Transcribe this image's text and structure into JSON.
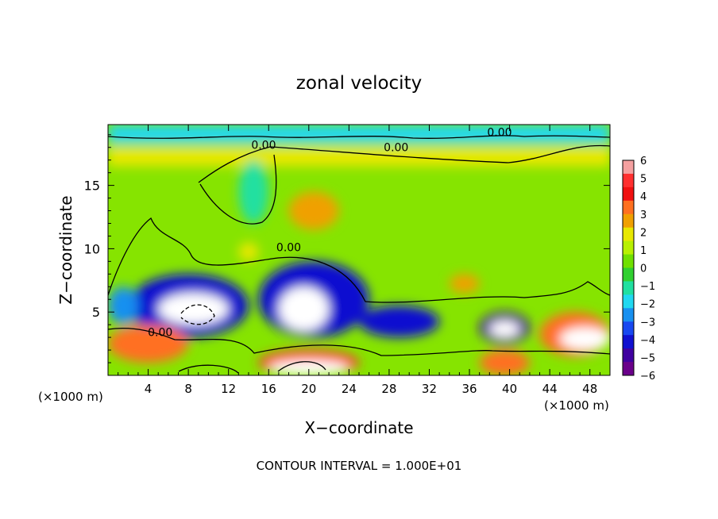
{
  "chart_data": {
    "type": "heatmap",
    "title": "zonal velocity",
    "xlabel": "X−coordinate",
    "ylabel": "Z−coordinate",
    "x_unit_left": "(×1000 m)",
    "x_unit_right": "(×1000 m)",
    "footer": "CONTOUR INTERVAL = 1.000E+01",
    "xlim": [
      0,
      50
    ],
    "ylim": [
      0,
      19.8
    ],
    "x_ticks": [
      4,
      8,
      12,
      16,
      20,
      24,
      28,
      32,
      36,
      40,
      44,
      48
    ],
    "y_ticks": [
      5,
      10,
      15
    ],
    "contour_labels": [
      "0.00",
      "0.00",
      "0.00",
      "0.00",
      "0.00"
    ],
    "colorbar": {
      "min": -6,
      "max": 6,
      "ticks": [
        6,
        5,
        4,
        3,
        2,
        1,
        0,
        -1,
        -2,
        -3,
        -4,
        -5,
        -6
      ],
      "colors": [
        "#f4a0a0",
        "#ff3030",
        "#f01010",
        "#ff7020",
        "#f0a000",
        "#e8e800",
        "#b8f000",
        "#70e000",
        "#30d030",
        "#20e0a0",
        "#20d8f0",
        "#1890f0",
        "#1848f0",
        "#1010d0",
        "#4000a0",
        "#6a008a"
      ]
    },
    "regions": [
      {
        "kind": "band",
        "x": [
          0,
          50
        ],
        "y": [
          18.3,
          19.8
        ],
        "value": -2
      },
      {
        "kind": "band",
        "x": [
          0,
          50
        ],
        "y": [
          16.5,
          18.0
        ],
        "value": 2
      },
      {
        "kind": "blob",
        "x": [
          13,
          16
        ],
        "y": [
          12,
          17
        ],
        "value": -1
      },
      {
        "kind": "blob",
        "x": [
          18,
          23
        ],
        "y": [
          11.5,
          14.5
        ],
        "value": 3
      },
      {
        "kind": "blob",
        "x": [
          13,
          15
        ],
        "y": [
          9,
          10.5
        ],
        "value": 2
      },
      {
        "kind": "blob",
        "x": [
          2,
          14
        ],
        "y": [
          3,
          8
        ],
        "value": -4
      },
      {
        "kind": "blob",
        "x": [
          5,
          12
        ],
        "y": [
          4,
          6.5
        ],
        "value": -8
      },
      {
        "kind": "blob",
        "x": [
          15,
          26
        ],
        "y": [
          3,
          9
        ],
        "value": -4
      },
      {
        "kind": "blob",
        "x": [
          17,
          22
        ],
        "y": [
          3.5,
          7
        ],
        "value": -8
      },
      {
        "kind": "blob",
        "x": [
          25,
          33
        ],
        "y": [
          3,
          5.5
        ],
        "value": -4
      },
      {
        "kind": "blob",
        "x": [
          37,
          42
        ],
        "y": [
          2.5,
          5
        ],
        "value": -5
      },
      {
        "kind": "blob",
        "x": [
          38,
          41
        ],
        "y": [
          3,
          4.3
        ],
        "value": -8
      },
      {
        "kind": "blob",
        "x": [
          43,
          50
        ],
        "y": [
          1.5,
          5
        ],
        "value": 4
      },
      {
        "kind": "blob",
        "x": [
          45,
          50
        ],
        "y": [
          2,
          3.8
        ],
        "value": 8
      },
      {
        "kind": "blob",
        "x": [
          0,
          8
        ],
        "y": [
          1,
          4
        ],
        "value": 4
      },
      {
        "kind": "blob",
        "x": [
          15,
          25
        ],
        "y": [
          0,
          2
        ],
        "value": 5
      },
      {
        "kind": "blob",
        "x": [
          16,
          24
        ],
        "y": [
          0,
          1.2
        ],
        "value": 8
      },
      {
        "kind": "blob",
        "x": [
          37,
          42
        ],
        "y": [
          0,
          2
        ],
        "value": 4
      },
      {
        "kind": "blob",
        "x": [
          34,
          37
        ],
        "y": [
          6.5,
          8
        ],
        "value": 3
      },
      {
        "kind": "blob",
        "x": [
          0,
          3
        ],
        "y": [
          4,
          7
        ],
        "value": -3
      }
    ]
  }
}
